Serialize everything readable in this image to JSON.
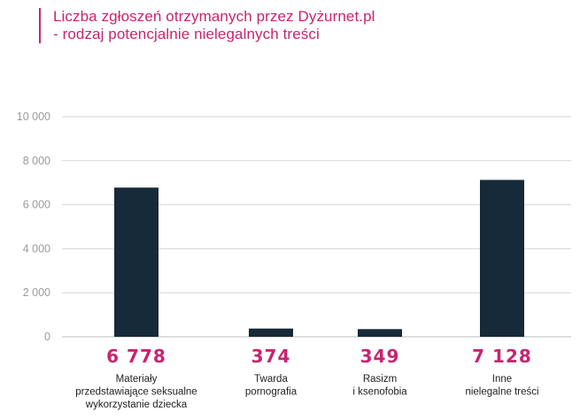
{
  "chart_data": {
    "type": "bar",
    "title": [
      "Liczba zgłoszeń otrzymanych przez Dyżurnet.pl",
      "- rodzaj potencjalnie nielegalnych treści"
    ],
    "categories": [
      [
        "Materiały",
        "przedstawiające seksualne",
        "wykorzystanie dziecka"
      ],
      [
        "Twarda",
        "pornografia"
      ],
      [
        "Rasizm",
        "i ksenofobia"
      ],
      [
        "Inne",
        "nielegalne treści"
      ]
    ],
    "values": [
      6778,
      374,
      349,
      7128
    ],
    "value_labels": [
      "6 778",
      "374",
      "349",
      "7 128"
    ],
    "yticks": [
      0,
      2000,
      4000,
      6000,
      8000,
      10000
    ],
    "ytick_labels": [
      "0",
      "2 000",
      "4 000",
      "6 000",
      "8 000",
      "10 000"
    ],
    "ylim": [
      0,
      10000
    ],
    "grid": true,
    "xlabel": "",
    "ylabel": "",
    "colors": {
      "bar": "#162a3a",
      "accent": "#c8246f",
      "grid": "#d6d6d6",
      "tick": "#9a9a9a"
    }
  }
}
